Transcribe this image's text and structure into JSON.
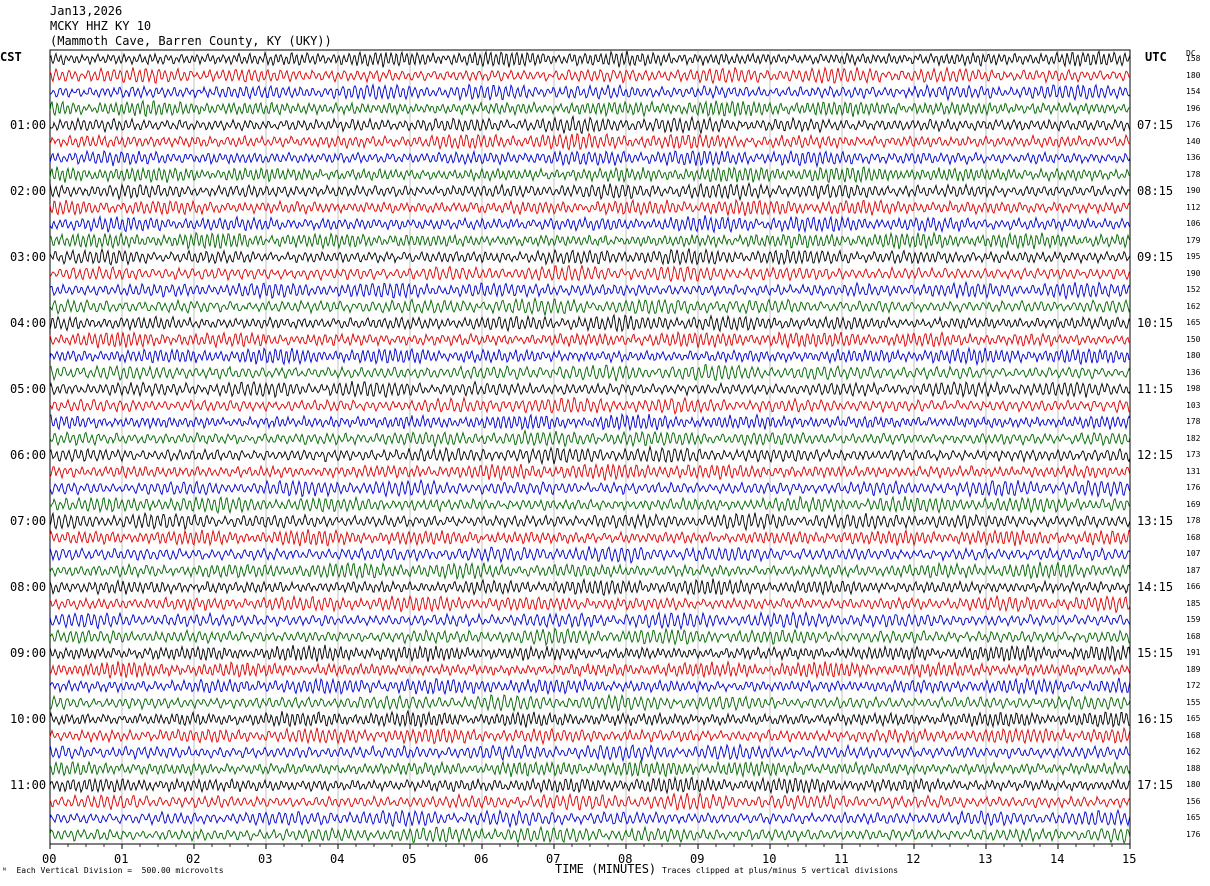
{
  "header": {
    "date": "Jan13,2026",
    "station": "MCKY HHZ KY 10",
    "location": "(Mammoth Cave, Barren County, KY (UKY))"
  },
  "left_tz": "CST",
  "right_tz": "UTC",
  "dc_label": "DC",
  "footer": {
    "scale": "Each Vertical Division =  500.00 microvolts",
    "xlabel": "TIME (MINUTES)",
    "clip": "Traces clipped at plus/minus 5 vertical divisions"
  },
  "chart_data": {
    "type": "line",
    "description_kind": "helicorder",
    "x_ticks": [
      "00",
      "01",
      "02",
      "03",
      "04",
      "05",
      "06",
      "07",
      "08",
      "09",
      "10",
      "11",
      "12",
      "13",
      "14",
      "15"
    ],
    "xlim": [
      0,
      15
    ],
    "xlabel": "TIME (MINUTES)",
    "left_labels": [
      "01:00",
      "02:00",
      "03:00",
      "04:00",
      "05:00",
      "06:00",
      "07:00",
      "08:00",
      "09:00",
      "10:00",
      "11:00"
    ],
    "right_labels": [
      "07:15",
      "08:15",
      "09:15",
      "10:15",
      "11:15",
      "12:15",
      "13:15",
      "14:15",
      "15:15",
      "16:15",
      "17:15"
    ],
    "trace_count": 48,
    "trace_colors": [
      "#000000",
      "#dd0000",
      "#0000cc",
      "#006600"
    ],
    "dc_offsets": [
      "158",
      "180",
      "154",
      "196",
      "176",
      "140",
      "136",
      "178",
      "190",
      "112",
      "106",
      "179",
      "195",
      "190",
      "152",
      "162",
      "165",
      "150",
      "180",
      "136",
      "198",
      "103",
      "178",
      "182",
      "173",
      "131",
      "176",
      "169",
      "178",
      "168",
      "107",
      "187",
      "166",
      "185",
      "159",
      "168",
      "191",
      "189",
      "172",
      "155",
      "165",
      "168",
      "162",
      "188",
      "180",
      "156",
      "165",
      "176"
    ],
    "grid": true
  }
}
